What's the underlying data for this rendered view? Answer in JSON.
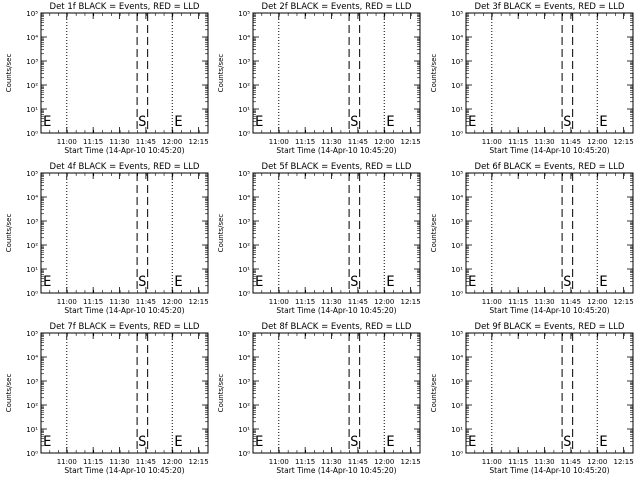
{
  "figure": {
    "ylabel": "Counts/sec",
    "xlabel": "Start Time (14-Apr-10 10:45:20)",
    "xtick_labels": [
      "11:00",
      "11:15",
      "11:30",
      "11:45",
      "12:00",
      "12:15"
    ],
    "ytick_labels": [
      "10⁰",
      "10¹",
      "10²",
      "10³",
      "10⁴",
      "10⁵"
    ],
    "marker_e_left": "E",
    "marker_s": "S",
    "marker_e_right": "E",
    "colors": {
      "events": "#000000",
      "lld": "#ff0000"
    }
  },
  "chart_data": [
    {
      "type": "line",
      "title": "Det 1f BLACK = Events, RED = LLD",
      "x_unit": "minutes since 10:45:20",
      "xlim": [
        0,
        95
      ],
      "ylim_log10": [
        0,
        5
      ],
      "yscale": "log",
      "dotted_times": [
        "11:00",
        "12:00"
      ],
      "dashed_times": [
        "11:40",
        "11:46"
      ],
      "series": []
    },
    {
      "type": "line",
      "title": "Det 2f BLACK = Events, RED = LLD",
      "x_unit": "minutes since 10:45:20",
      "xlim": [
        0,
        95
      ],
      "ylim_log10": [
        0,
        5
      ],
      "yscale": "log",
      "dotted_times": [
        "11:00",
        "12:00"
      ],
      "dashed_times": [
        "11:40",
        "11:46"
      ],
      "series": []
    },
    {
      "type": "line",
      "title": "Det 3f BLACK = Events, RED = LLD",
      "x_unit": "minutes since 10:45:20",
      "xlim": [
        0,
        95
      ],
      "ylim_log10": [
        0,
        5
      ],
      "yscale": "log",
      "dotted_times": [
        "11:00",
        "12:00"
      ],
      "dashed_times": [
        "11:40",
        "11:46"
      ],
      "series": []
    },
    {
      "type": "line",
      "title": "Det 4f BLACK = Events, RED = LLD",
      "x_unit": "minutes since 10:45:20",
      "xlim": [
        0,
        95
      ],
      "ylim_log10": [
        0,
        5
      ],
      "yscale": "log",
      "dotted_times": [
        "11:00",
        "12:00"
      ],
      "dashed_times": [
        "11:40",
        "11:46"
      ],
      "series": []
    },
    {
      "type": "line",
      "title": "Det 5f BLACK = Events, RED = LLD",
      "x_unit": "minutes since 10:45:20",
      "xlim": [
        0,
        95
      ],
      "ylim_log10": [
        0,
        5
      ],
      "yscale": "log",
      "dotted_times": [
        "11:00",
        "12:00"
      ],
      "dashed_times": [
        "11:40",
        "11:46"
      ],
      "series": []
    },
    {
      "type": "line",
      "title": "Det 6f BLACK = Events, RED = LLD",
      "x_unit": "minutes since 10:45:20",
      "xlim": [
        0,
        95
      ],
      "ylim_log10": [
        0,
        5
      ],
      "yscale": "log",
      "dotted_times": [
        "11:00",
        "12:00"
      ],
      "dashed_times": [
        "11:40",
        "11:46"
      ],
      "series": []
    },
    {
      "type": "line",
      "title": "Det 7f BLACK = Events, RED = LLD",
      "x_unit": "minutes since 10:45:20",
      "xlim": [
        0,
        95
      ],
      "ylim_log10": [
        0,
        5
      ],
      "yscale": "log",
      "dotted_times": [
        "11:00",
        "12:00"
      ],
      "dashed_times": [
        "11:40",
        "11:46"
      ],
      "series": []
    },
    {
      "type": "line",
      "title": "Det 8f BLACK = Events, RED = LLD",
      "x_unit": "minutes since 10:45:20",
      "xlim": [
        0,
        95
      ],
      "ylim_log10": [
        0,
        5
      ],
      "yscale": "log",
      "dotted_times": [
        "11:00",
        "12:00"
      ],
      "dashed_times": [
        "11:40",
        "11:46"
      ],
      "series": []
    },
    {
      "type": "line",
      "title": "Det 9f BLACK = Events, RED = LLD",
      "x_unit": "minutes since 10:45:20",
      "xlim": [
        0,
        95
      ],
      "ylim_log10": [
        0,
        5
      ],
      "yscale": "log",
      "dotted_times": [
        "11:00",
        "12:00"
      ],
      "dashed_times": [
        "11:40",
        "11:46"
      ],
      "series": []
    }
  ]
}
